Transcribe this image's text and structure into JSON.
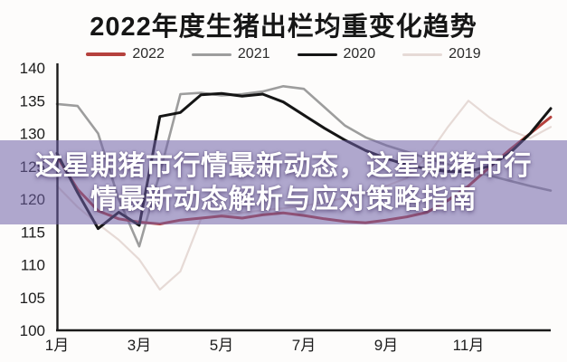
{
  "page": {
    "title": "2022年度生猪出栏均重变化趋势"
  },
  "legend": {
    "items": [
      {
        "label": "2022",
        "color": "#b5413d",
        "thickness": 4
      },
      {
        "label": "2021",
        "color": "#9d9d9d",
        "thickness": 3
      },
      {
        "label": "2020",
        "color": "#151515",
        "thickness": 3
      },
      {
        "label": "2019",
        "color": "#e6dad6",
        "thickness": 3
      }
    ]
  },
  "overlay": {
    "line1": "这星期猪市行情最新动态，这星期猪市行",
    "line2": "情最新动态解析与应对策略指南",
    "background": "#7060a8",
    "text_color": "#ffffff"
  },
  "chart_data": {
    "type": "line",
    "title": "2022年度生猪出栏均重变化趋势",
    "xlabel": "",
    "ylabel": "",
    "x_unit": "month",
    "ylim": [
      100,
      140
    ],
    "yticks": [
      100,
      105,
      110,
      115,
      120,
      125,
      130,
      135,
      140
    ],
    "x_axis": {
      "tick_positions": [
        1,
        3,
        5,
        7,
        9,
        11
      ],
      "tick_labels": [
        "1月",
        "3月",
        "5月",
        "7月",
        "9月",
        "11月"
      ]
    },
    "grid": false,
    "legend_position": "top",
    "x": [
      1,
      1.5,
      2,
      2.5,
      3,
      3.5,
      4,
      4.5,
      5,
      5.5,
      6,
      6.5,
      7,
      7.5,
      8,
      8.5,
      9,
      9.5,
      10,
      10.5,
      11,
      11.5,
      12,
      12.5,
      13
    ],
    "series": [
      {
        "name": "2022",
        "color": "#b5413d",
        "values": [
          126.5,
          121.5,
          118.2,
          117.0,
          116.5,
          116.2,
          116.8,
          117.1,
          117.4,
          117.1,
          117.6,
          117.9,
          117.5,
          117.0,
          116.6,
          116.4,
          116.8,
          117.3,
          118.0,
          119.8,
          122.0,
          124.8,
          127.5,
          130.0,
          132.5
        ]
      },
      {
        "name": "2021",
        "color": "#9d9d9d",
        "values": [
          134.5,
          134.2,
          130.0,
          120.0,
          112.8,
          124.0,
          136.0,
          136.2,
          135.8,
          136.0,
          136.4,
          137.2,
          136.8,
          134.0,
          131.2,
          129.4,
          128.2,
          127.2,
          126.2,
          125.3,
          124.4,
          123.6,
          122.8,
          122.0,
          121.3
        ]
      },
      {
        "name": "2020",
        "color": "#151515",
        "values": [
          127.0,
          121.0,
          115.5,
          118.0,
          116.0,
          132.6,
          133.2,
          135.9,
          136.1,
          135.7,
          136.0,
          134.8,
          132.8,
          130.8,
          129.0,
          127.4,
          126.2,
          125.2,
          124.6,
          124.2,
          124.2,
          125.0,
          127.0,
          130.0,
          133.8
        ]
      },
      {
        "name": "2019",
        "color": "#e6dad6",
        "values": [
          122.0,
          118.8,
          116.2,
          113.8,
          110.8,
          106.2,
          109.0,
          117.0,
          117.6,
          117.9,
          118.3,
          118.6,
          119.0,
          119.5,
          120.2,
          121.0,
          122.0,
          123.2,
          126.5,
          131.0,
          135.0,
          132.5,
          130.5,
          129.3,
          131.0
        ]
      }
    ]
  }
}
